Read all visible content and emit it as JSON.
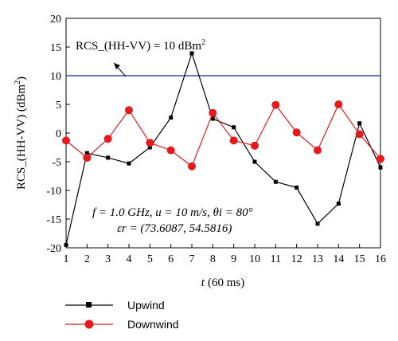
{
  "chart_data": {
    "type": "line",
    "x": [
      1,
      2,
      3,
      4,
      5,
      6,
      7,
      8,
      9,
      10,
      11,
      12,
      13,
      14,
      15,
      16
    ],
    "xlim": [
      1,
      16
    ],
    "ylim": [
      -20,
      20
    ],
    "xticks": [
      "1",
      "2",
      "3",
      "4",
      "5",
      "6",
      "7",
      "8",
      "9",
      "10",
      "11",
      "12",
      "13",
      "14",
      "15",
      "16"
    ],
    "yticks": [
      "20",
      "15",
      "10",
      "5",
      "0",
      "-5",
      "-10",
      "-15",
      "-20"
    ],
    "ytick_values": [
      20,
      15,
      10,
      5,
      0,
      -5,
      -10,
      -15,
      -20
    ],
    "xlabel": {
      "var": "t",
      "unit": "(60 ms)"
    },
    "ylabel": "RCS_(HH-VV) (dBm",
    "ylabel_sup": "2",
    "ylabel_close": ")",
    "series": [
      {
        "name": "Upwind",
        "color": "#000000",
        "marker": "square",
        "values": [
          -19.5,
          -3.5,
          -4.3,
          -5.3,
          -2.5,
          2.7,
          13.9,
          2.5,
          1.0,
          -5.0,
          -8.5,
          -9.5,
          -15.8,
          -12.3,
          1.7,
          -6.0
        ]
      },
      {
        "name": "Downwind",
        "color": "#e41a1c",
        "marker": "circle",
        "values": [
          -1.3,
          -4.3,
          -1.0,
          4.0,
          -1.7,
          -3.0,
          -5.8,
          3.5,
          -1.3,
          -2.2,
          4.9,
          0.1,
          -3.0,
          5.0,
          -0.2,
          -4.5
        ]
      }
    ],
    "reference_line": {
      "value": 10,
      "color": "#1f1f8f",
      "label": "RCS_(HH-VV) = 10 dBm",
      "label_sup": "2"
    },
    "annotations": {
      "line1": "f = 1.0 GHz, u = 10 m/s, θi = 80°",
      "line2": "εr = (73.6087, 54.5816)"
    },
    "legend_placement": "bottom-left",
    "grid": false
  }
}
